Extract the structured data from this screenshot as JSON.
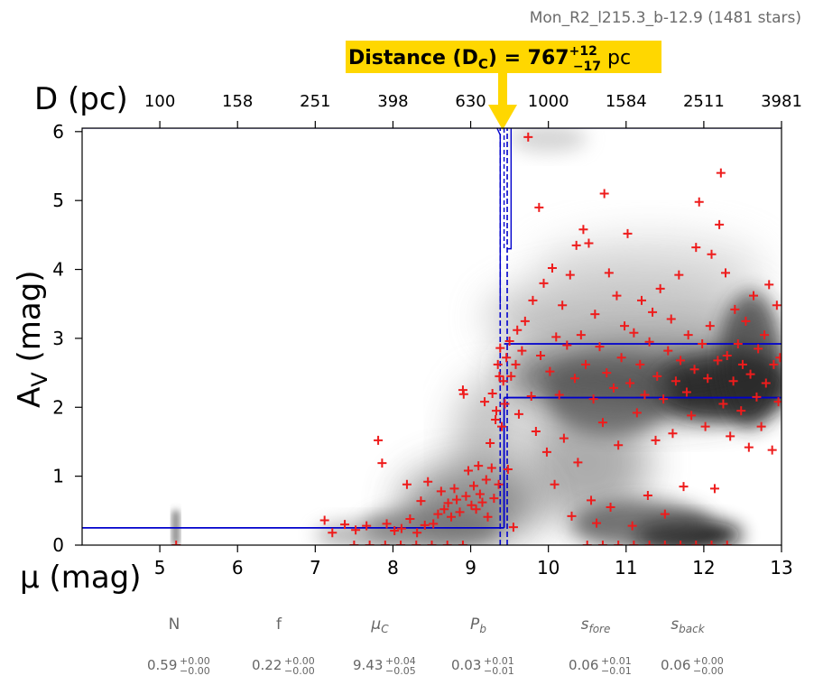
{
  "header": {
    "title": "Mon_R2_l215.3_b-12.9 (1481 stars)"
  },
  "distance_badge": {
    "label": "Distance (D",
    "sub": "C",
    "eq": ") = 767",
    "plus": "+12",
    "minus": "−17",
    "unit": " pc",
    "color": "#ffd700"
  },
  "parameters": [
    {
      "name": "N",
      "italic": false,
      "value": "0.59",
      "plus": "+0.00",
      "minus": "−0.00"
    },
    {
      "name": "f",
      "italic": false,
      "value": "0.22",
      "plus": "+0.00",
      "minus": "−0.00"
    },
    {
      "name": "μ",
      "sub": "C",
      "italic": true,
      "value": "9.43",
      "plus": "+0.04",
      "minus": "−0.05"
    },
    {
      "name": "P",
      "sub": "b",
      "italic": true,
      "value": "0.03",
      "plus": "+0.01",
      "minus": "−0.01"
    },
    {
      "name": "s",
      "sub": "fore",
      "italic": true,
      "value": "0.06",
      "plus": "+0.01",
      "minus": "−0.01"
    },
    {
      "name": "s",
      "sub": "back",
      "italic": true,
      "value": "0.06",
      "plus": "+0.00",
      "minus": "−0.00"
    }
  ],
  "chart_data": {
    "type": "scatter",
    "title": "",
    "xlabel": "μ (mag)",
    "ylabel": "A",
    "ylabel_sub": "V",
    "ylabel_unit": " (mag)",
    "top_xlabel": "D (pc)",
    "xlim": [
      4,
      13
    ],
    "ylim": [
      0,
      6.05
    ],
    "x_ticks": [
      5,
      6,
      7,
      8,
      9,
      10,
      11,
      12,
      13
    ],
    "y_ticks": [
      0,
      1,
      2,
      3,
      4,
      5,
      6
    ],
    "top_ticks": [
      {
        "mu": 5,
        "label": "100"
      },
      {
        "mu": 6,
        "label": "158"
      },
      {
        "mu": 7,
        "label": "251"
      },
      {
        "mu": 8,
        "label": "398"
      },
      {
        "mu": 9,
        "label": "630"
      },
      {
        "mu": 10,
        "label": "1000"
      },
      {
        "mu": 11,
        "label": "1584"
      },
      {
        "mu": 12,
        "label": "2511"
      },
      {
        "mu": 13,
        "label": "3981"
      }
    ],
    "grid": false,
    "marker_color": "#ee1c1c",
    "line_color": "#0000cc",
    "arrow_color": "#ffd700",
    "model": {
      "mu_cloud": 9.43,
      "mu_lo": 9.38,
      "mu_hi": 9.47,
      "foreground_av": 0.25,
      "background_av_low": 2.14,
      "background_av_high": 2.92
    },
    "stars": [
      [
        5.21,
        0.0
      ],
      [
        7.12,
        0.36
      ],
      [
        7.22,
        0.18
      ],
      [
        7.38,
        0.3
      ],
      [
        7.52,
        0.22
      ],
      [
        7.66,
        0.28
      ],
      [
        7.81,
        1.52
      ],
      [
        7.86,
        1.19
      ],
      [
        7.92,
        0.31
      ],
      [
        8.02,
        0.21
      ],
      [
        8.11,
        0.24
      ],
      [
        8.18,
        0.88
      ],
      [
        8.22,
        0.38
      ],
      [
        8.31,
        0.18
      ],
      [
        8.36,
        0.64
      ],
      [
        8.41,
        0.29
      ],
      [
        8.45,
        0.92
      ],
      [
        8.52,
        0.31
      ],
      [
        8.58,
        0.45
      ],
      [
        8.62,
        0.78
      ],
      [
        8.66,
        0.52
      ],
      [
        8.71,
        0.61
      ],
      [
        8.75,
        0.41
      ],
      [
        8.79,
        0.82
      ],
      [
        8.82,
        0.66
      ],
      [
        8.86,
        0.48
      ],
      [
        8.9,
        2.25
      ],
      [
        8.91,
        2.19
      ],
      [
        8.94,
        0.71
      ],
      [
        8.97,
        1.08
      ],
      [
        9.01,
        0.58
      ],
      [
        9.04,
        0.86
      ],
      [
        9.07,
        0.52
      ],
      [
        9.1,
        1.15
      ],
      [
        9.12,
        0.74
      ],
      [
        9.15,
        0.62
      ],
      [
        9.18,
        2.08
      ],
      [
        9.2,
        0.95
      ],
      [
        9.22,
        0.41
      ],
      [
        9.25,
        1.48
      ],
      [
        9.27,
        1.12
      ],
      [
        9.28,
        2.2
      ],
      [
        9.3,
        0.68
      ],
      [
        9.32,
        1.82
      ],
      [
        9.33,
        1.95
      ],
      [
        9.35,
        2.62
      ],
      [
        9.36,
        0.88
      ],
      [
        9.37,
        2.45
      ],
      [
        9.38,
        2.86
      ],
      [
        9.4,
        1.72
      ],
      [
        9.42,
        2.38
      ],
      [
        9.44,
        2.05
      ],
      [
        9.46,
        2.72
      ],
      [
        9.48,
        1.1
      ],
      [
        9.5,
        2.96
      ],
      [
        9.52,
        2.45
      ],
      [
        9.55,
        0.26
      ],
      [
        9.58,
        2.62
      ],
      [
        9.6,
        3.12
      ],
      [
        9.62,
        1.9
      ],
      [
        9.66,
        2.82
      ],
      [
        9.7,
        3.25
      ],
      [
        9.74,
        5.92
      ],
      [
        9.78,
        2.16
      ],
      [
        9.8,
        3.55
      ],
      [
        9.84,
        1.65
      ],
      [
        9.88,
        4.9
      ],
      [
        9.9,
        2.75
      ],
      [
        9.94,
        3.8
      ],
      [
        9.98,
        1.35
      ],
      [
        10.02,
        2.52
      ],
      [
        10.05,
        4.02
      ],
      [
        10.08,
        0.88
      ],
      [
        10.1,
        3.02
      ],
      [
        10.14,
        2.18
      ],
      [
        10.18,
        3.48
      ],
      [
        10.2,
        1.55
      ],
      [
        10.24,
        2.9
      ],
      [
        10.28,
        3.92
      ],
      [
        10.3,
        0.42
      ],
      [
        10.34,
        2.42
      ],
      [
        10.36,
        4.35
      ],
      [
        10.38,
        1.2
      ],
      [
        10.42,
        3.05
      ],
      [
        10.45,
        4.58
      ],
      [
        10.48,
        2.62
      ],
      [
        10.52,
        4.38
      ],
      [
        10.55,
        0.65
      ],
      [
        10.58,
        2.12
      ],
      [
        10.6,
        3.35
      ],
      [
        10.62,
        0.32
      ],
      [
        10.66,
        2.88
      ],
      [
        10.7,
        1.78
      ],
      [
        10.72,
        5.1
      ],
      [
        10.75,
        2.5
      ],
      [
        10.78,
        3.95
      ],
      [
        10.8,
        0.55
      ],
      [
        10.84,
        2.28
      ],
      [
        10.88,
        3.62
      ],
      [
        10.9,
        1.45
      ],
      [
        10.94,
        2.72
      ],
      [
        10.98,
        3.18
      ],
      [
        11.02,
        4.52
      ],
      [
        11.05,
        2.35
      ],
      [
        11.08,
        0.28
      ],
      [
        11.1,
        3.08
      ],
      [
        11.14,
        1.92
      ],
      [
        11.18,
        2.62
      ],
      [
        11.2,
        3.55
      ],
      [
        11.24,
        2.18
      ],
      [
        11.28,
        0.72
      ],
      [
        11.3,
        2.95
      ],
      [
        11.34,
        3.38
      ],
      [
        11.38,
        1.52
      ],
      [
        11.4,
        2.45
      ],
      [
        11.44,
        3.72
      ],
      [
        11.48,
        2.12
      ],
      [
        11.5,
        0.45
      ],
      [
        11.54,
        2.82
      ],
      [
        11.58,
        3.28
      ],
      [
        11.6,
        1.62
      ],
      [
        11.64,
        2.38
      ],
      [
        11.68,
        3.92
      ],
      [
        11.7,
        2.68
      ],
      [
        11.74,
        0.85
      ],
      [
        11.78,
        2.22
      ],
      [
        11.8,
        3.05
      ],
      [
        11.84,
        1.88
      ],
      [
        11.88,
        2.55
      ],
      [
        11.9,
        4.32
      ],
      [
        11.94,
        4.98
      ],
      [
        11.98,
        2.92
      ],
      [
        12.02,
        1.72
      ],
      [
        12.05,
        2.42
      ],
      [
        12.08,
        3.18
      ],
      [
        12.1,
        4.22
      ],
      [
        12.14,
        0.82
      ],
      [
        12.18,
        2.68
      ],
      [
        12.2,
        4.65
      ],
      [
        12.22,
        5.4
      ],
      [
        12.25,
        2.05
      ],
      [
        12.28,
        3.95
      ],
      [
        12.3,
        2.75
      ],
      [
        12.34,
        1.58
      ],
      [
        12.38,
        2.38
      ],
      [
        12.4,
        3.42
      ],
      [
        12.44,
        2.92
      ],
      [
        12.48,
        1.95
      ],
      [
        12.5,
        2.62
      ],
      [
        12.54,
        3.25
      ],
      [
        12.58,
        1.42
      ],
      [
        12.6,
        2.48
      ],
      [
        12.64,
        3.62
      ],
      [
        12.68,
        2.15
      ],
      [
        12.7,
        2.85
      ],
      [
        12.74,
        1.72
      ],
      [
        12.78,
        3.05
      ],
      [
        12.8,
        2.35
      ],
      [
        12.84,
        3.78
      ],
      [
        12.88,
        1.38
      ],
      [
        12.9,
        2.62
      ],
      [
        12.94,
        3.48
      ],
      [
        12.96,
        2.08
      ],
      [
        12.98,
        2.72
      ],
      [
        7.5,
        0.0
      ],
      [
        7.7,
        0.0
      ],
      [
        7.9,
        0.0
      ],
      [
        8.1,
        0.0
      ],
      [
        8.3,
        0.0
      ],
      [
        8.5,
        0.0
      ],
      [
        8.7,
        0.0
      ],
      [
        8.9,
        0.0
      ],
      [
        10.5,
        0.0
      ],
      [
        10.7,
        0.0
      ],
      [
        10.9,
        0.0
      ],
      [
        11.1,
        0.0
      ],
      [
        11.3,
        0.0
      ],
      [
        11.5,
        0.0
      ],
      [
        11.7,
        0.0
      ],
      [
        11.9,
        0.0
      ],
      [
        12.1,
        0.0
      ],
      [
        12.3,
        0.0
      ]
    ]
  }
}
